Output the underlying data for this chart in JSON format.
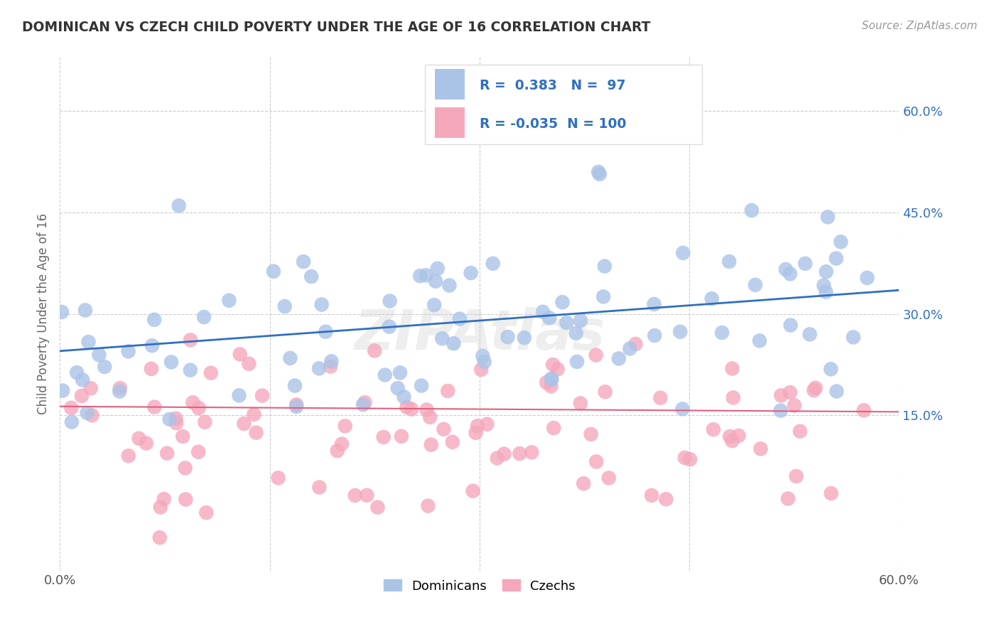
{
  "title": "DOMINICAN VS CZECH CHILD POVERTY UNDER THE AGE OF 16 CORRELATION CHART",
  "source": "Source: ZipAtlas.com",
  "ylabel": "Child Poverty Under the Age of 16",
  "ytick_labels": [
    "15.0%",
    "30.0%",
    "45.0%",
    "60.0%"
  ],
  "ytick_vals": [
    0.15,
    0.3,
    0.45,
    0.6
  ],
  "xlim": [
    0.0,
    0.6
  ],
  "ylim": [
    -0.08,
    0.68
  ],
  "blue_R": 0.383,
  "blue_N": 97,
  "pink_R": -0.035,
  "pink_N": 100,
  "blue_color": "#aac4e8",
  "pink_color": "#f5a8bc",
  "blue_line_color": "#3070c0",
  "pink_line_color": "#e06080",
  "legend_blue_label": "Dominicans",
  "legend_pink_label": "Czechs",
  "watermark": "ZIPAtlas",
  "background_color": "#ffffff",
  "grid_color": "#cccccc",
  "title_color": "#333333",
  "source_color": "#999999",
  "blue_trend_y0": 0.245,
  "blue_trend_y1": 0.335,
  "pink_trend_y0": 0.163,
  "pink_trend_y1": 0.155
}
